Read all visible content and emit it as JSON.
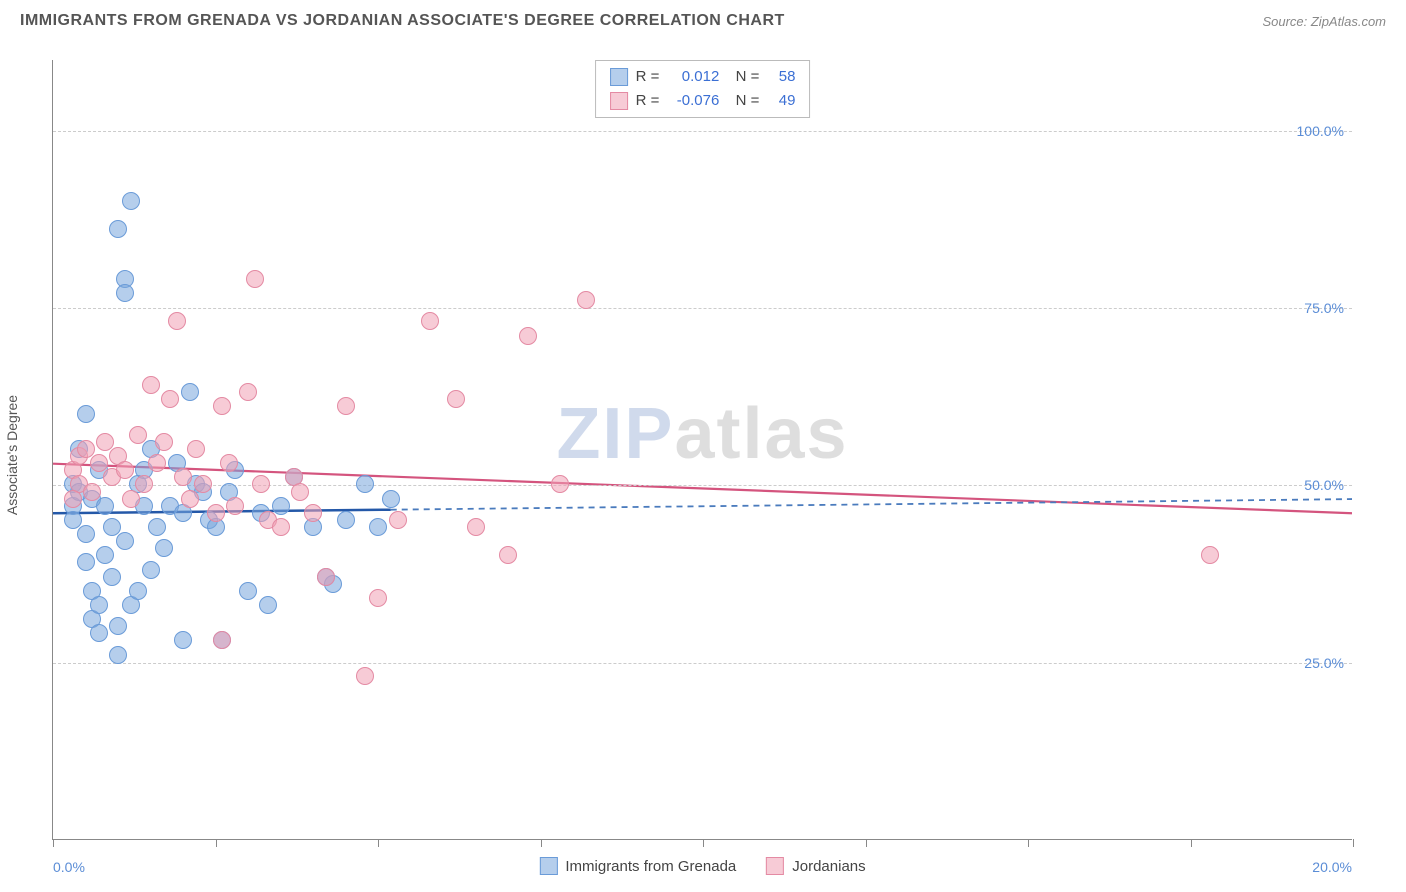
{
  "header": {
    "title": "IMMIGRANTS FROM GRENADA VS JORDANIAN ASSOCIATE'S DEGREE CORRELATION CHART",
    "source": "Source: ZipAtlas.com"
  },
  "watermark": {
    "part1": "ZIP",
    "part2": "atlas"
  },
  "chart": {
    "type": "scatter",
    "background_color": "#ffffff",
    "grid_color": "#cccccc",
    "axis_color": "#888888",
    "ylabel": "Associate's Degree",
    "xlim": [
      0,
      20
    ],
    "ylim": [
      0,
      110
    ],
    "yticks": [
      {
        "v": 25,
        "label": "25.0%"
      },
      {
        "v": 50,
        "label": "50.0%"
      },
      {
        "v": 75,
        "label": "75.0%"
      },
      {
        "v": 100,
        "label": "100.0%"
      }
    ],
    "xticks": [
      0,
      2.5,
      5,
      7.5,
      10,
      12.5,
      15,
      17.5,
      20
    ],
    "xtick_labels": {
      "start": "0.0%",
      "end": "20.0%"
    },
    "marker_radius": 9,
    "series": [
      {
        "name": "Immigrants from Grenada",
        "fill": "rgba(120,165,220,0.55)",
        "stroke": "#6a9bd8",
        "line_color": "#2458a8",
        "dash_color": "#4a7bbd",
        "R": "0.012",
        "N": "58",
        "trend": {
          "x1": 0,
          "y1": 46,
          "x2": 5.2,
          "y2": 46.5,
          "ext_x2": 20,
          "ext_y2": 48
        },
        "points": [
          [
            0.3,
            47
          ],
          [
            0.3,
            50
          ],
          [
            0.3,
            45
          ],
          [
            0.4,
            49
          ],
          [
            0.4,
            55
          ],
          [
            0.5,
            43
          ],
          [
            0.5,
            39
          ],
          [
            0.5,
            60
          ],
          [
            0.6,
            35
          ],
          [
            0.6,
            31
          ],
          [
            0.6,
            48
          ],
          [
            0.7,
            33
          ],
          [
            0.7,
            29
          ],
          [
            0.7,
            52
          ],
          [
            0.8,
            47
          ],
          [
            0.8,
            40
          ],
          [
            0.9,
            37
          ],
          [
            0.9,
            44
          ],
          [
            1.0,
            30
          ],
          [
            1.0,
            26
          ],
          [
            1.0,
            86
          ],
          [
            1.1,
            79
          ],
          [
            1.1,
            77
          ],
          [
            1.1,
            42
          ],
          [
            1.2,
            33
          ],
          [
            1.2,
            90
          ],
          [
            1.3,
            35
          ],
          [
            1.3,
            50
          ],
          [
            1.4,
            47
          ],
          [
            1.4,
            52
          ],
          [
            1.5,
            38
          ],
          [
            1.5,
            55
          ],
          [
            1.6,
            44
          ],
          [
            1.7,
            41
          ],
          [
            1.8,
            47
          ],
          [
            1.9,
            53
          ],
          [
            2.0,
            46
          ],
          [
            2.0,
            28
          ],
          [
            2.1,
            63
          ],
          [
            2.2,
            50
          ],
          [
            2.3,
            49
          ],
          [
            2.4,
            45
          ],
          [
            2.5,
            44
          ],
          [
            2.6,
            28
          ],
          [
            2.7,
            49
          ],
          [
            2.8,
            52
          ],
          [
            3.0,
            35
          ],
          [
            3.2,
            46
          ],
          [
            3.3,
            33
          ],
          [
            3.5,
            47
          ],
          [
            3.7,
            51
          ],
          [
            4.0,
            44
          ],
          [
            4.2,
            37
          ],
          [
            4.3,
            36
          ],
          [
            4.5,
            45
          ],
          [
            4.8,
            50
          ],
          [
            5.0,
            44
          ],
          [
            5.2,
            48
          ]
        ]
      },
      {
        "name": "Jordanians",
        "fill": "rgba(240,160,180,0.55)",
        "stroke": "#e48aa3",
        "line_color": "#d4547e",
        "R": "-0.076",
        "N": "49",
        "trend": {
          "x1": 0,
          "y1": 53,
          "x2": 20,
          "y2": 46
        },
        "points": [
          [
            0.3,
            52
          ],
          [
            0.4,
            54
          ],
          [
            0.4,
            50
          ],
          [
            0.5,
            55
          ],
          [
            0.6,
            49
          ],
          [
            0.7,
            53
          ],
          [
            0.8,
            56
          ],
          [
            0.9,
            51
          ],
          [
            1.0,
            54
          ],
          [
            1.1,
            52
          ],
          [
            1.2,
            48
          ],
          [
            1.3,
            57
          ],
          [
            1.4,
            50
          ],
          [
            1.5,
            64
          ],
          [
            1.6,
            53
          ],
          [
            1.7,
            56
          ],
          [
            1.8,
            62
          ],
          [
            1.9,
            73
          ],
          [
            2.0,
            51
          ],
          [
            2.1,
            48
          ],
          [
            2.2,
            55
          ],
          [
            2.3,
            50
          ],
          [
            2.5,
            46
          ],
          [
            2.6,
            61
          ],
          [
            2.6,
            28
          ],
          [
            2.7,
            53
          ],
          [
            2.8,
            47
          ],
          [
            3.0,
            63
          ],
          [
            3.1,
            79
          ],
          [
            3.2,
            50
          ],
          [
            3.3,
            45
          ],
          [
            3.5,
            44
          ],
          [
            3.7,
            51
          ],
          [
            3.8,
            49
          ],
          [
            4.0,
            46
          ],
          [
            4.2,
            37
          ],
          [
            4.5,
            61
          ],
          [
            4.8,
            23
          ],
          [
            5.0,
            34
          ],
          [
            5.3,
            45
          ],
          [
            5.8,
            73
          ],
          [
            6.2,
            62
          ],
          [
            6.5,
            44
          ],
          [
            7.0,
            40
          ],
          [
            7.3,
            71
          ],
          [
            7.8,
            50
          ],
          [
            8.2,
            76
          ],
          [
            17.8,
            40
          ],
          [
            0.3,
            48
          ]
        ]
      }
    ],
    "legend_bottom": [
      {
        "label": "Immigrants from Grenada",
        "fill": "rgba(120,165,220,0.55)",
        "stroke": "#6a9bd8"
      },
      {
        "label": "Jordanians",
        "fill": "rgba(240,160,180,0.55)",
        "stroke": "#e48aa3"
      }
    ]
  }
}
